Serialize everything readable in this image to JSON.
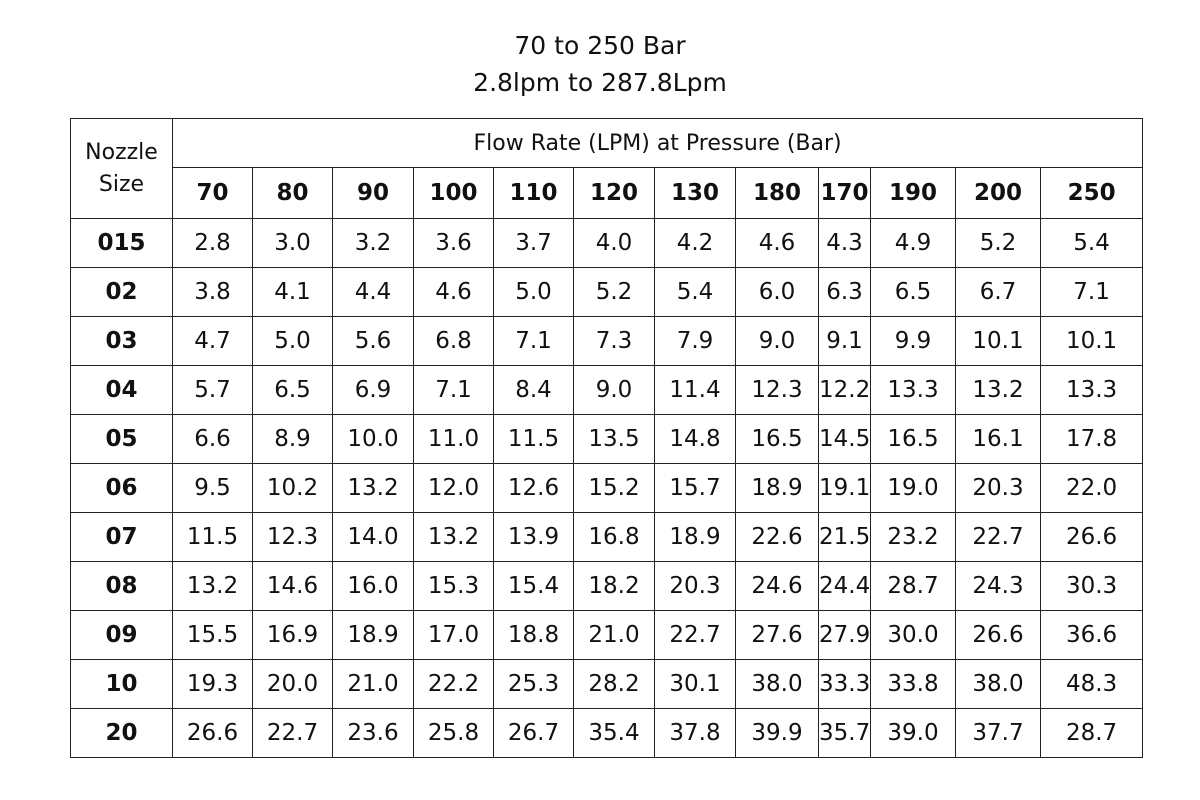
{
  "title": {
    "line1": "70 to 250 Bar",
    "line2": "2.8lpm to 287.8Lpm"
  },
  "table": {
    "corner": "Nozzle Size",
    "group_header": "Flow Rate (LPM) at Pressure (Bar)",
    "columns": [
      "70",
      "80",
      "90",
      "100",
      "110",
      "120",
      "130",
      "180",
      "170",
      "190",
      "200",
      "250"
    ],
    "rows": [
      [
        "015",
        "2.8",
        "3.0",
        "3.2",
        "3.6",
        "3.7",
        "4.0",
        "4.2",
        "4.6",
        "4.3",
        "4.9",
        "5.2",
        "5.4"
      ],
      [
        "02",
        "3.8",
        "4.1",
        "4.4",
        "4.6",
        "5.0",
        "5.2",
        "5.4",
        "6.0",
        "6.3",
        "6.5",
        "6.7",
        "7.1"
      ],
      [
        "03",
        "4.7",
        "5.0",
        "5.6",
        "6.8",
        "7.1",
        "7.3",
        "7.9",
        "9.0",
        "9.1",
        "9.9",
        "10.1",
        "10.1"
      ],
      [
        "04",
        "5.7",
        "6.5",
        "6.9",
        "7.1",
        "8.4",
        "9.0",
        "11.4",
        "12.3",
        "12.2",
        "13.3",
        "13.2",
        "13.3"
      ],
      [
        "05",
        "6.6",
        "8.9",
        "10.0",
        "11.0",
        "11.5",
        "13.5",
        "14.8",
        "16.5",
        "14.5",
        "16.5",
        "16.1",
        "17.8"
      ],
      [
        "06",
        "9.5",
        "10.2",
        "13.2",
        "12.0",
        "12.6",
        "15.2",
        "15.7",
        "18.9",
        "19.1",
        "19.0",
        "20.3",
        "22.0"
      ],
      [
        "07",
        "11.5",
        "12.3",
        "14.0",
        "13.2",
        "13.9",
        "16.8",
        "18.9",
        "22.6",
        "21.5",
        "23.2",
        "22.7",
        "26.6"
      ],
      [
        "08",
        "13.2",
        "14.6",
        "16.0",
        "15.3",
        "15.4",
        "18.2",
        "20.3",
        "24.6",
        "24.4",
        "28.7",
        "24.3",
        "30.3"
      ],
      [
        "09",
        "15.5",
        "16.9",
        "18.9",
        "17.0",
        "18.8",
        "21.0",
        "22.7",
        "27.6",
        "27.9",
        "30.0",
        "26.6",
        "36.6"
      ],
      [
        "10",
        "19.3",
        "20.0",
        "21.0",
        "22.2",
        "25.3",
        "28.2",
        "30.1",
        "38.0",
        "33.3",
        "33.8",
        "38.0",
        "48.3"
      ],
      [
        "20",
        "26.6",
        "22.7",
        "23.6",
        "25.8",
        "26.7",
        "35.4",
        "37.8",
        "39.9",
        "35.7",
        "39.0",
        "37.7",
        "28.7"
      ]
    ]
  }
}
